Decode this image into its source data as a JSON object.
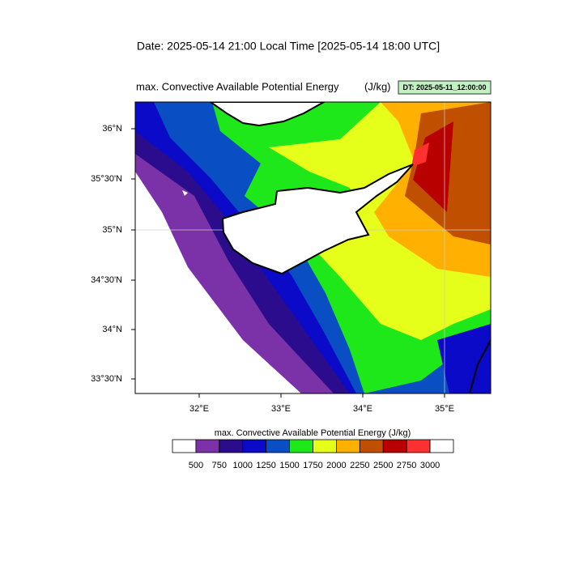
{
  "header": {
    "date_line": "Date: 2025-05-14  21:00 Local Time [2025-05-14  18:00 UTC]"
  },
  "plot": {
    "title": "max. Convective Available Potential Energy",
    "units": "(J/kg)",
    "dt_badge": "DT: 2025-05-11_12:00:00"
  },
  "axes": {
    "y_labels": [
      "36°N",
      "35°30'N",
      "35°N",
      "34°30'N",
      "34°N",
      "33°30'N"
    ],
    "x_labels": [
      "32°E",
      "33°E",
      "34°E",
      "35°E"
    ]
  },
  "colorbar": {
    "title": "max. Convective Available Potential Energy  (J/kg)",
    "labels": [
      "500",
      "750",
      "1000",
      "1250",
      "1500",
      "1750",
      "2000",
      "2250",
      "2500",
      "2750",
      "3000"
    ],
    "colors": [
      "#ffffff",
      "#7b32a8",
      "#2a0c8c",
      "#0a0ac8",
      "#0a4ec4",
      "#1ee81a",
      "#e6ff1a",
      "#ffb000",
      "#c05000",
      "#b80000",
      "#ff3030",
      "#ffffff"
    ]
  }
}
